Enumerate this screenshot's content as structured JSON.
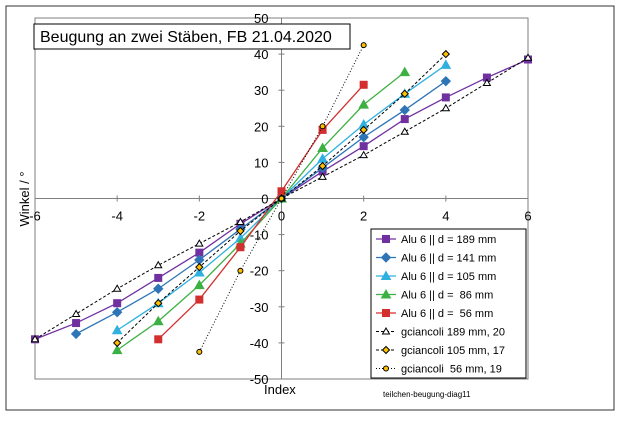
{
  "chart_data": {
    "type": "line",
    "title": "Beugung an zwei Stäben, FB  21.04.2020",
    "xlabel": "Index",
    "ylabel": "Winkel / °",
    "footnote": "teilchen-beugung-diag11",
    "xlim": [
      -6,
      6
    ],
    "ylim": [
      -50,
      50
    ],
    "x_ticks": [
      -6,
      -4,
      -2,
      0,
      2,
      4,
      6
    ],
    "y_ticks": [
      -50,
      -40,
      -30,
      -20,
      -10,
      0,
      10,
      20,
      30,
      40,
      50
    ],
    "grid": false,
    "legend_position": "bottom-right",
    "series": [
      {
        "name": "Alu 6 || d = 189 mm",
        "color": "#7030a0",
        "marker": "square",
        "dash": "solid",
        "x": [
          -6,
          -5,
          -4,
          -3,
          -2,
          -1,
          0,
          1,
          2,
          3,
          4,
          5,
          6
        ],
        "y": [
          -39,
          -34.5,
          -29,
          -22,
          -15,
          -7,
          0,
          7.5,
          14.5,
          22,
          28,
          33.5,
          38.5
        ]
      },
      {
        "name": "Alu 6 || d = 141 mm",
        "color": "#2e75b6",
        "marker": "diamond",
        "dash": "solid",
        "x": [
          -5,
          -4,
          -3,
          -2,
          -1,
          0,
          1,
          2,
          3,
          4
        ],
        "y": [
          -37.5,
          -31.5,
          -25,
          -17,
          -8.5,
          0,
          8.5,
          17,
          24.5,
          32.5
        ]
      },
      {
        "name": "Alu 6 || d = 105 mm",
        "color": "#2fb0e0",
        "marker": "triangle",
        "dash": "solid",
        "x": [
          -4,
          -3,
          -2,
          -1,
          0,
          1,
          2,
          3,
          4
        ],
        "y": [
          -36.5,
          -29,
          -20.5,
          -11,
          0,
          11,
          20.5,
          29,
          37
        ]
      },
      {
        "name": "Alu 6 || d =  86 mm",
        "color": "#3cb043",
        "marker": "triangle",
        "dash": "solid",
        "x": [
          -4,
          -3,
          -2,
          -1,
          0,
          1,
          2,
          3
        ],
        "y": [
          -42,
          -34,
          -24,
          -12.5,
          0,
          14,
          26,
          35
        ]
      },
      {
        "name": "Alu 6 || d =  56 mm",
        "color": "#d32f2f",
        "marker": "square",
        "dash": "solid",
        "x": [
          -3,
          -2,
          -1,
          0,
          1,
          2
        ],
        "y": [
          -39,
          -28,
          -13.5,
          2,
          19,
          31.5
        ]
      },
      {
        "name": "gciancoli 189 mm, 20",
        "color": "#000000",
        "marker": "triangle-open",
        "dash": "dash",
        "x": [
          -6,
          -5,
          -4,
          -3,
          -2,
          -1,
          0,
          1,
          2,
          3,
          4,
          5,
          6
        ],
        "y": [
          -39,
          -32,
          -25,
          -18.5,
          -12.5,
          -6.5,
          0,
          6,
          12,
          18.5,
          25,
          32,
          39
        ]
      },
      {
        "name": "gciancoli 105 mm, 17",
        "color": "#000000",
        "marker": "diamond-open",
        "dash": "dash",
        "x": [
          -4,
          -3,
          -2,
          -1,
          0,
          1,
          2,
          3,
          4
        ],
        "y": [
          -40,
          -29,
          -19,
          -9,
          0,
          9,
          19,
          29,
          40
        ]
      },
      {
        "name": "gciancoli  56 mm, 19",
        "color": "#000000",
        "marker": "circle-open",
        "dash": "dot",
        "x": [
          -2,
          -1,
          0,
          1,
          2
        ],
        "y": [
          -42.5,
          -20,
          0,
          20,
          42.5
        ]
      }
    ]
  }
}
